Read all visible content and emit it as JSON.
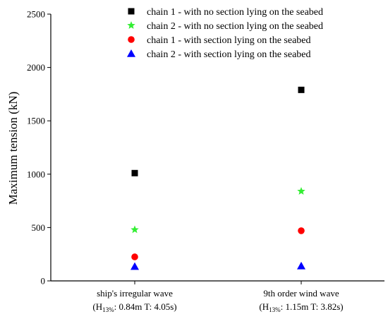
{
  "chart_data": {
    "type": "scatter",
    "title": "",
    "xlabel": "",
    "ylabel": "Maximum tension (kN)",
    "ylim": [
      0,
      2500
    ],
    "yticks": [
      0,
      500,
      1000,
      1500,
      2000,
      2500
    ],
    "categories": [
      {
        "line1": "ship's irregular wave",
        "h_main": "(H",
        "h_sub": "13%",
        "h_rest": ": 0.84m  T: 4.05s)"
      },
      {
        "line1": "9th order wind wave",
        "h_main": "(H",
        "h_sub": "13%",
        "h_rest": ": 1.15m  T: 3.82s)"
      }
    ],
    "grid": false,
    "legend_position": "top-right",
    "series": [
      {
        "name": "chain 1 - with no section lying on the seabed",
        "marker": "square",
        "color": "#000000",
        "values": [
          1010,
          1790
        ]
      },
      {
        "name": "chain 2 - with no section lying on the seabed",
        "marker": "star",
        "color": "#33ee33",
        "values": [
          480,
          840
        ]
      },
      {
        "name": "chain 1 - with section lying on the seabed",
        "marker": "circle",
        "color": "#ff0000",
        "values": [
          225,
          470
        ]
      },
      {
        "name": "chain 2 - with section lying on the seabed",
        "marker": "triangle",
        "color": "#0000ff",
        "values": [
          135,
          140
        ]
      }
    ]
  }
}
